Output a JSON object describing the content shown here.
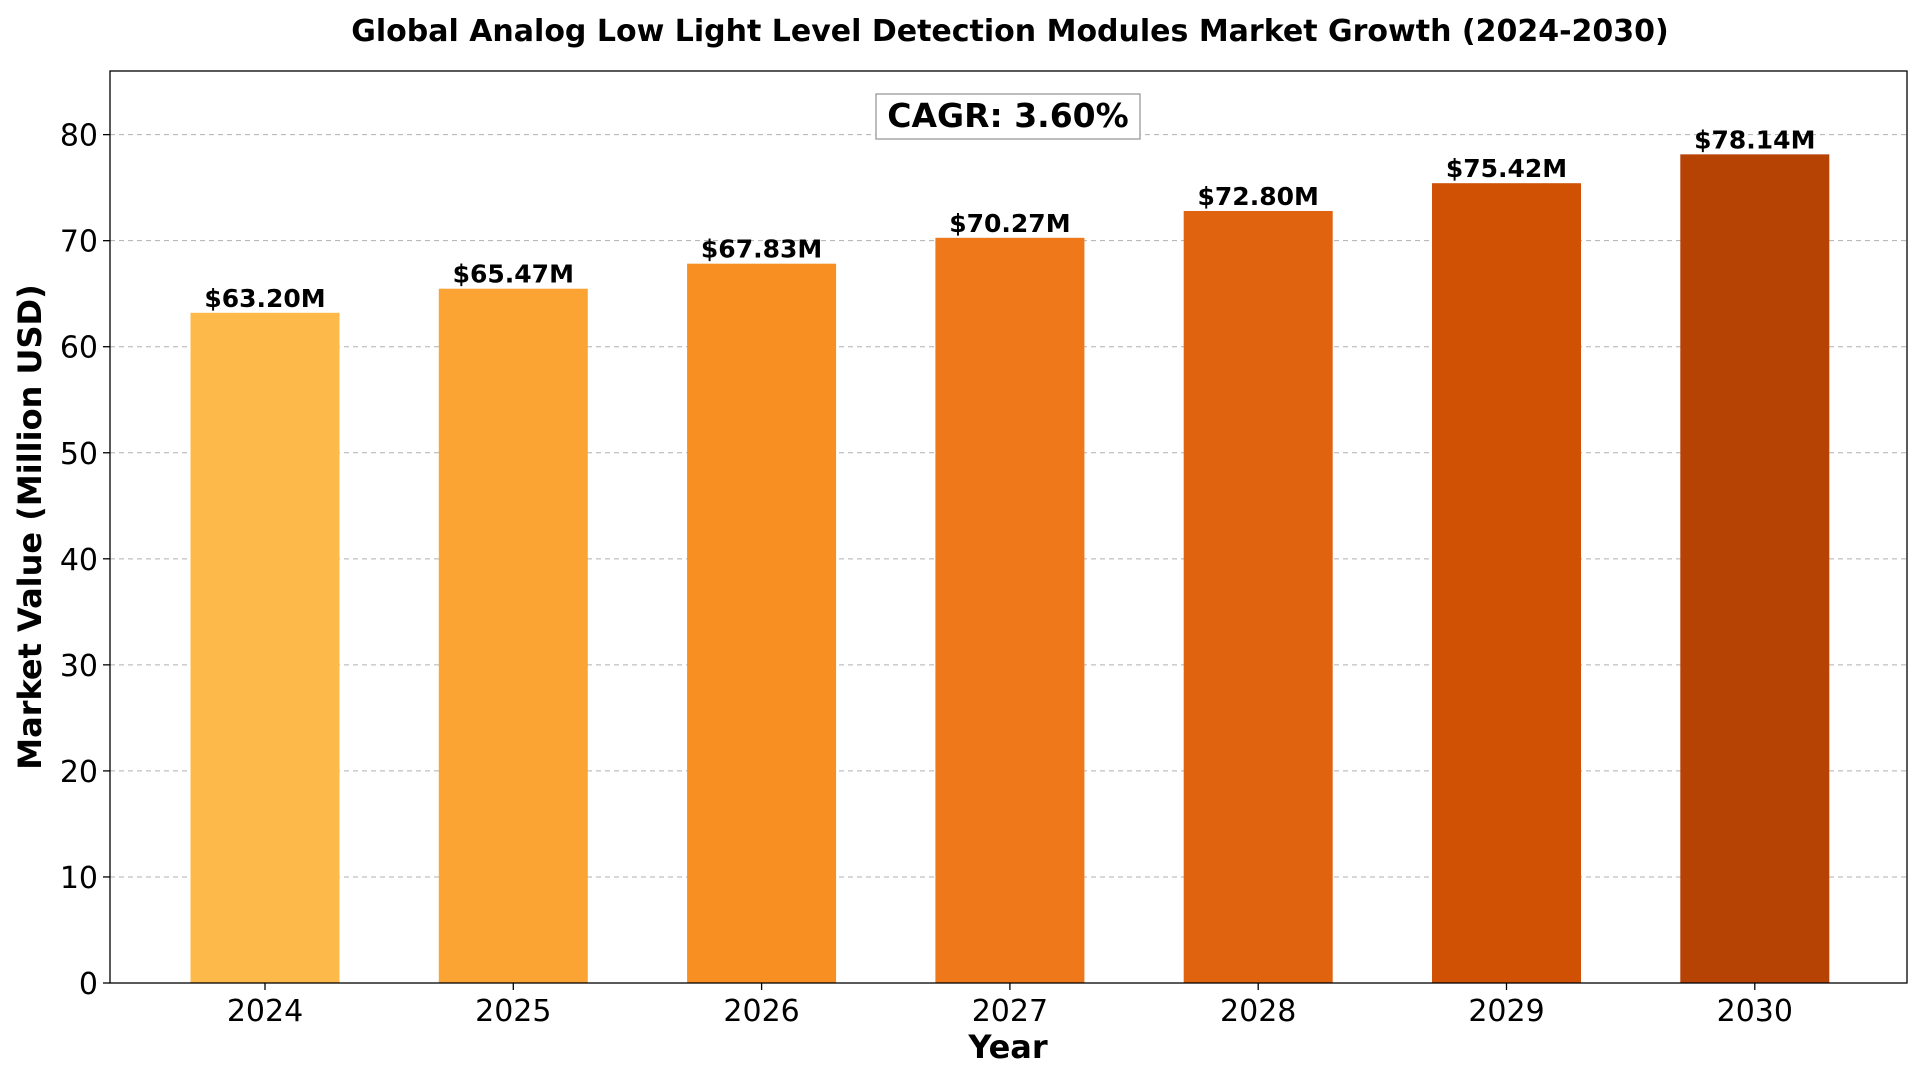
{
  "chart_data": {
    "type": "bar",
    "title": "Global Analog Low Light Level Detection Modules Market Growth (2024-2030)",
    "xlabel": "Year",
    "ylabel": "Market Value (Million USD)",
    "categories": [
      "2024",
      "2025",
      "2026",
      "2027",
      "2028",
      "2029",
      "2030"
    ],
    "values": [
      63.2,
      65.47,
      67.83,
      70.27,
      72.8,
      75.42,
      78.14
    ],
    "data_labels": [
      "$63.20M",
      "$65.47M",
      "$67.83M",
      "$70.27M",
      "$72.80M",
      "$75.42M",
      "$78.14M"
    ],
    "bar_colors": [
      "#FDB94A",
      "#FCA433",
      "#F78F23",
      "#EF781A",
      "#E0640F",
      "#D05004",
      "#B64204"
    ],
    "ylim": [
      0,
      86
    ],
    "yticks": [
      0,
      10,
      20,
      30,
      40,
      50,
      60,
      70,
      80
    ],
    "grid": "horizontal-dashed",
    "annotation": "CAGR: 3.60%"
  }
}
